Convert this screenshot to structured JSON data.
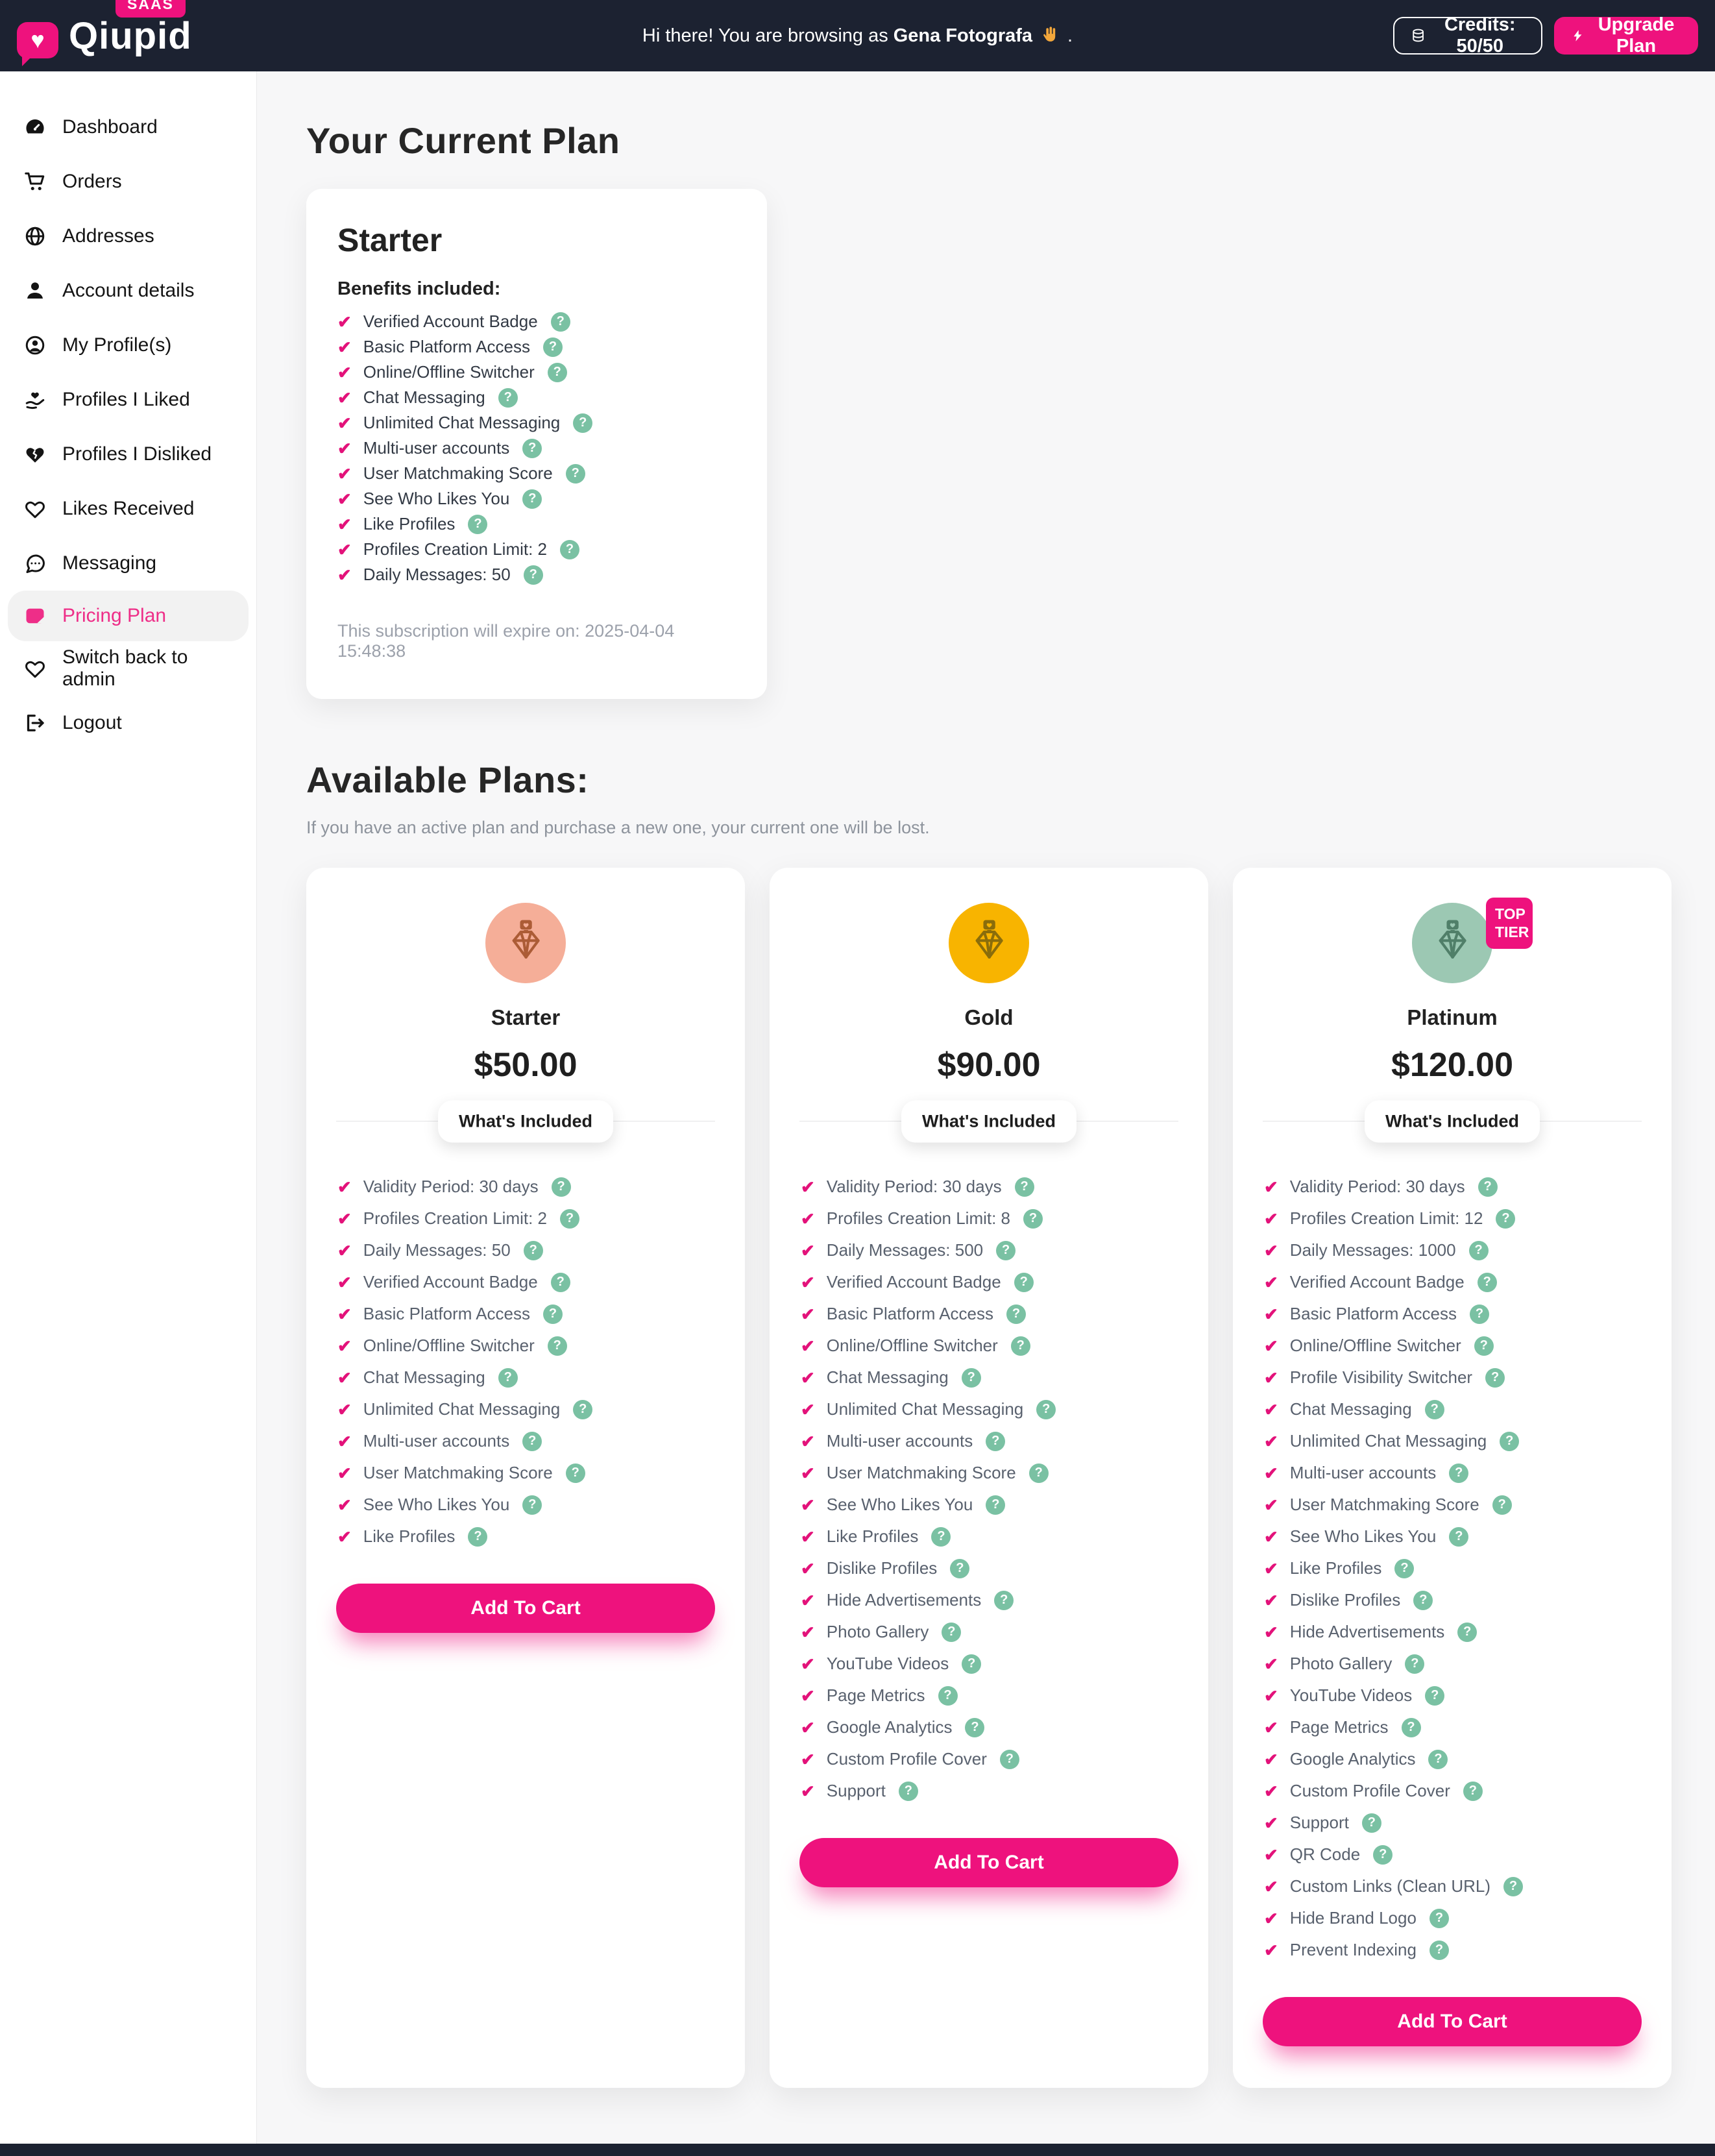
{
  "header": {
    "brand_badge": "SAAS",
    "brand_name": "Qiupid",
    "greeting_prefix": "Hi there! You are browsing as",
    "user_name": "Gena Fotografa",
    "greeting_suffix": ".",
    "credits_label": "Credits: 50/50",
    "upgrade_label": "Upgrade Plan"
  },
  "sidebar": {
    "items": [
      {
        "label": "Dashboard",
        "icon": "dashboard-icon",
        "active": false
      },
      {
        "label": "Orders",
        "icon": "cart-icon",
        "active": false
      },
      {
        "label": "Addresses",
        "icon": "globe-icon",
        "active": false
      },
      {
        "label": "Account details",
        "icon": "user-icon",
        "active": false
      },
      {
        "label": "My Profile(s)",
        "icon": "user-circle-icon",
        "active": false
      },
      {
        "label": "Profiles I Liked",
        "icon": "hand-heart-icon",
        "active": false
      },
      {
        "label": "Profiles I Disliked",
        "icon": "heart-crack-icon",
        "active": false
      },
      {
        "label": "Likes Received",
        "icon": "heart-icon",
        "active": false
      },
      {
        "label": "Messaging",
        "icon": "comment-icon",
        "active": false
      },
      {
        "label": "Pricing Plan",
        "icon": "money-note-icon",
        "active": true
      },
      {
        "label": "Switch back to admin",
        "icon": "heart-icon",
        "active": false
      },
      {
        "label": "Logout",
        "icon": "logout-icon",
        "active": false
      }
    ]
  },
  "current_plan": {
    "section_title": "Your Current Plan",
    "plan_name": "Starter",
    "benefits_heading": "Benefits included:",
    "benefits": [
      "Verified Account Badge",
      "Basic Platform Access",
      "Online/Offline Switcher",
      "Chat Messaging",
      "Unlimited Chat Messaging",
      "Multi-user accounts",
      "User Matchmaking Score",
      "See Who Likes You",
      "Like Profiles",
      "Profiles Creation Limit: 2",
      "Daily Messages: 50"
    ],
    "expiry_note": "This subscription will expire on: 2025-04-04 15:48:38"
  },
  "available_plans": {
    "section_title": "Available Plans:",
    "subtitle": "If you have an active plan and purchase a new one, your current one will be lost.",
    "whats_included_label": "What's Included",
    "add_to_cart_label": "Add To Cart",
    "top_tier_badge": "TOP TIER",
    "plans": [
      {
        "name": "Starter",
        "price": "$50.00",
        "top_tier": false,
        "circle_color": "#F5AE98",
        "gem_color": "#AC5C36",
        "features": [
          "Validity Period: 30 days",
          "Profiles Creation Limit: 2",
          "Daily Messages: 50",
          "Verified Account Badge",
          "Basic Platform Access",
          "Online/Offline Switcher",
          "Chat Messaging",
          "Unlimited Chat Messaging",
          "Multi-user accounts",
          "User Matchmaking Score",
          "See Who Likes You",
          "Like Profiles"
        ]
      },
      {
        "name": "Gold",
        "price": "$90.00",
        "top_tier": false,
        "circle_color": "#F8B400",
        "gem_color": "#8A6D0B",
        "features": [
          "Validity Period: 30 days",
          "Profiles Creation Limit: 8",
          "Daily Messages: 500",
          "Verified Account Badge",
          "Basic Platform Access",
          "Online/Offline Switcher",
          "Chat Messaging",
          "Unlimited Chat Messaging",
          "Multi-user accounts",
          "User Matchmaking Score",
          "See Who Likes You",
          "Like Profiles",
          "Dislike Profiles",
          "Hide Advertisements",
          "Photo Gallery",
          "YouTube Videos",
          "Page Metrics",
          "Google Analytics",
          "Custom Profile Cover",
          "Support"
        ]
      },
      {
        "name": "Platinum",
        "price": "$120.00",
        "top_tier": true,
        "circle_color": "#9CC8B3",
        "gem_color": "#507F69",
        "features": [
          "Validity Period: 30 days",
          "Profiles Creation Limit: 12",
          "Daily Messages: 1000",
          "Verified Account Badge",
          "Basic Platform Access",
          "Online/Offline Switcher",
          "Profile Visibility Switcher",
          "Chat Messaging",
          "Unlimited Chat Messaging",
          "Multi-user accounts",
          "User Matchmaking Score",
          "See Who Likes You",
          "Like Profiles",
          "Dislike Profiles",
          "Hide Advertisements",
          "Photo Gallery",
          "YouTube Videos",
          "Page Metrics",
          "Google Analytics",
          "Custom Profile Cover",
          "Support",
          "QR Code",
          "Custom Links (Clean URL)",
          "Hide Brand Logo",
          "Prevent Indexing"
        ]
      }
    ]
  },
  "colors": {
    "header_bg": "#1C2231",
    "accent_pink": "#EE127D",
    "check_pink": "#E3127A",
    "help_green": "#7AC1A3",
    "page_bg": "#F7F7F8"
  }
}
